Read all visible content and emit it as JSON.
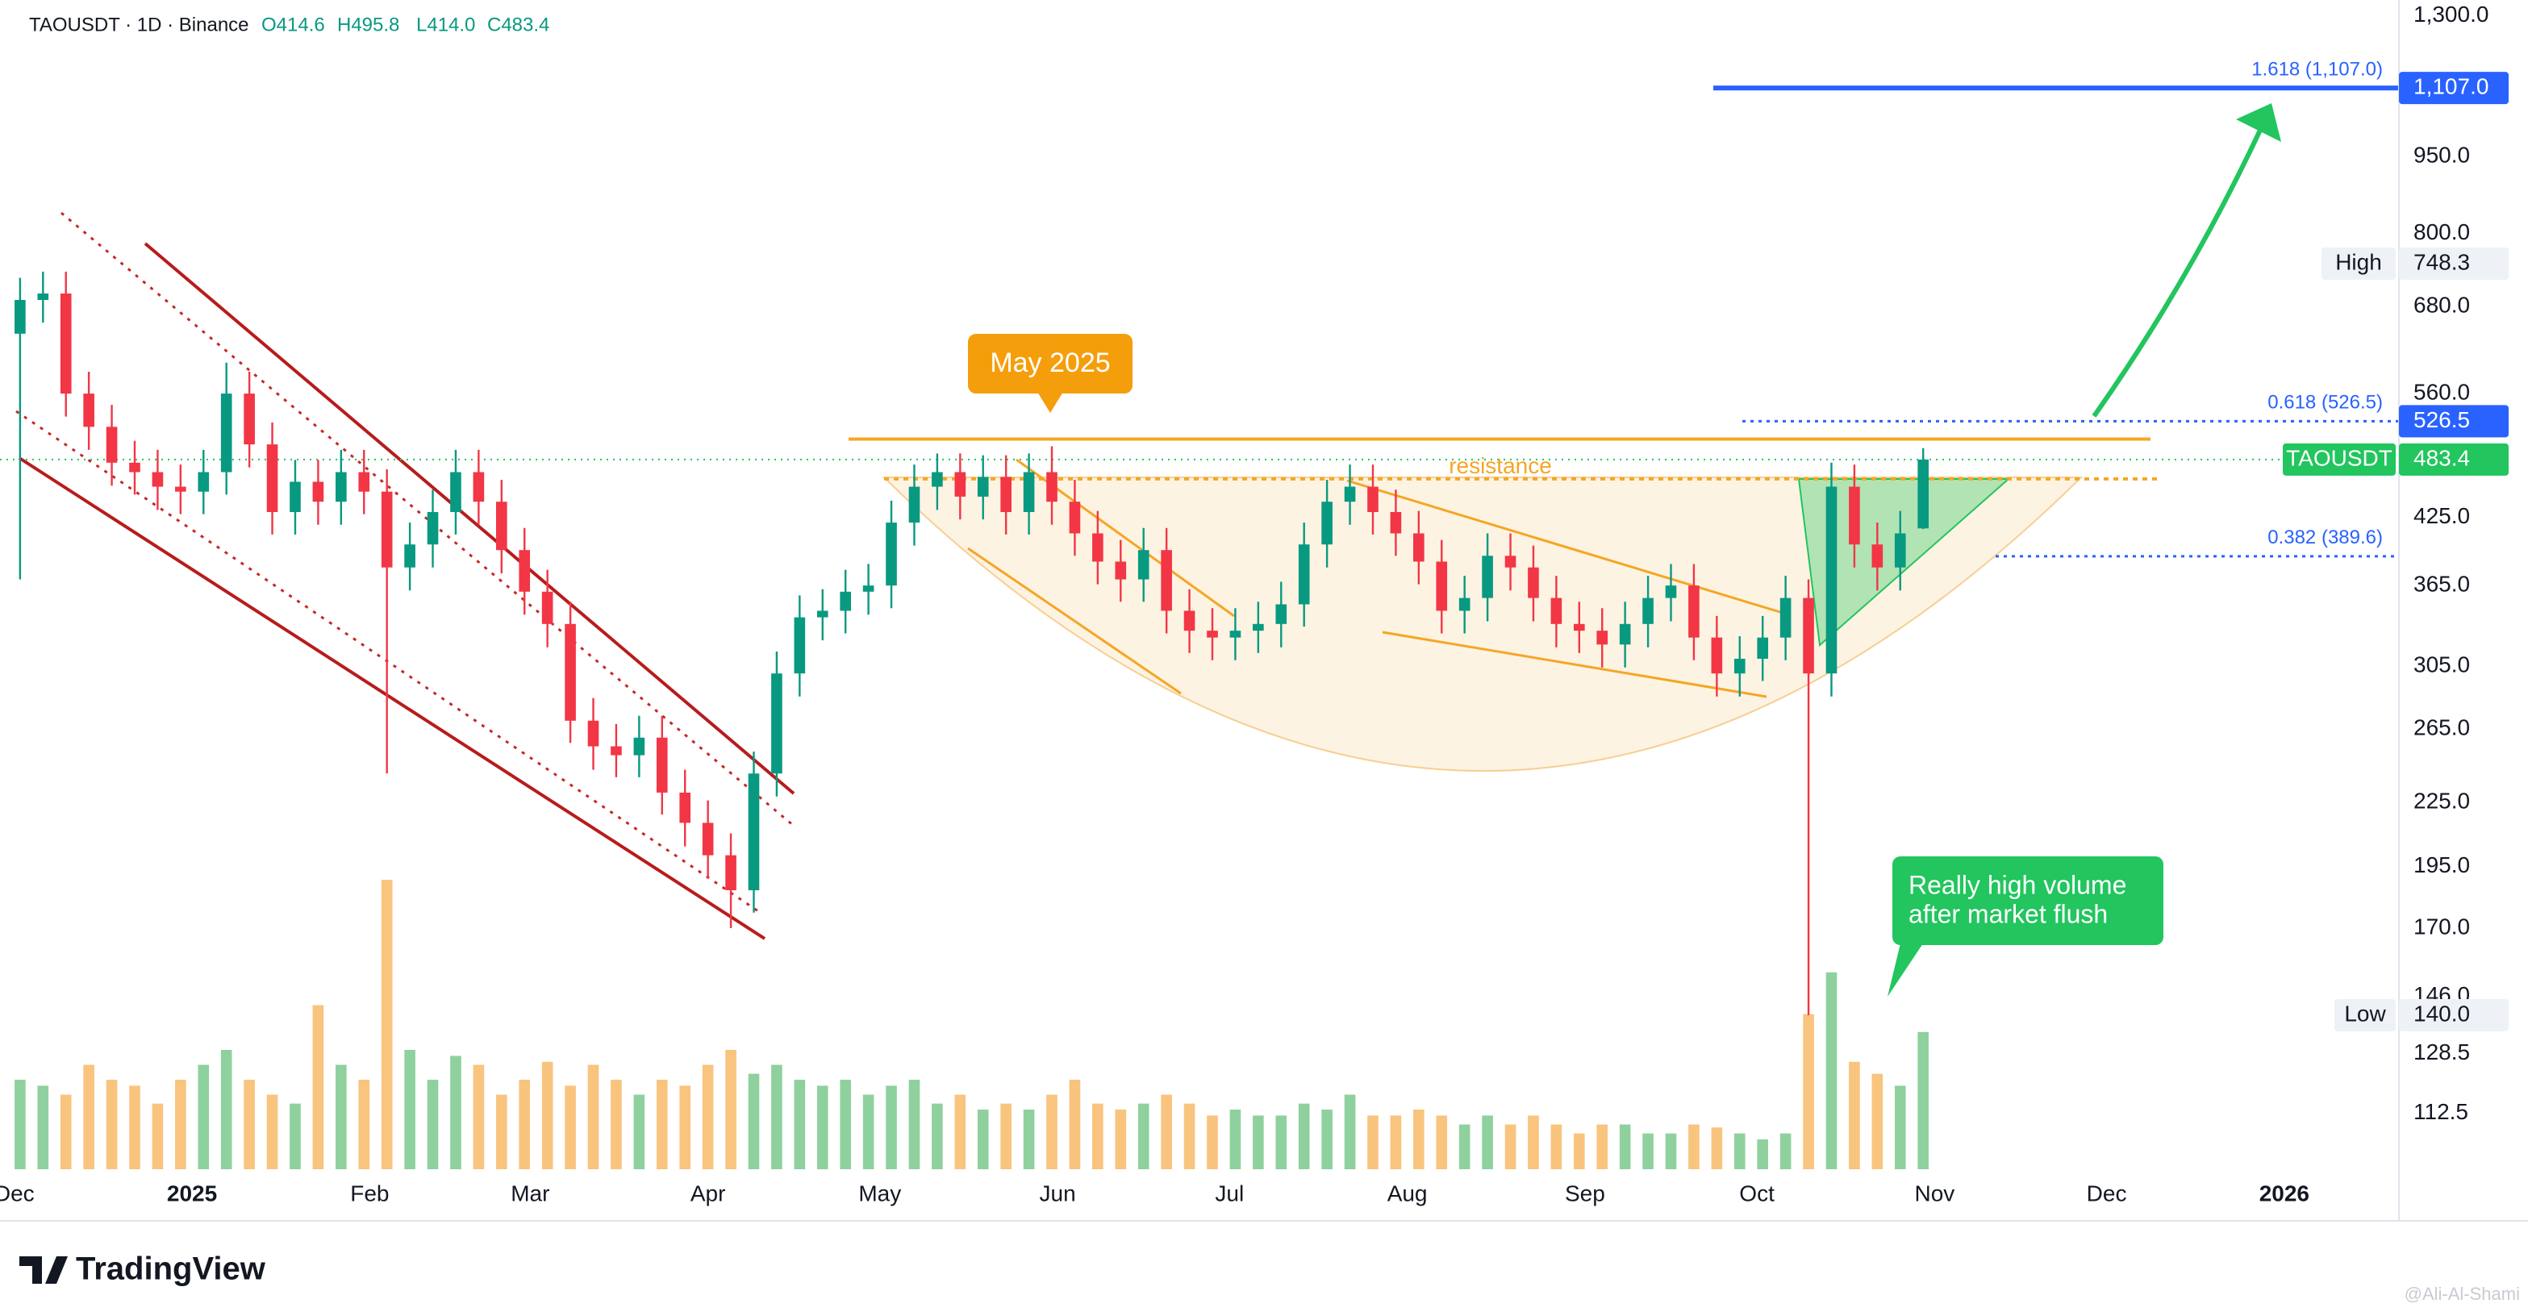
{
  "chart_data": {
    "type": "candlestick",
    "header": {
      "title": "TAOUSDT · 1D · Binance",
      "ohlc": [
        "O414.6",
        "H495.8",
        "L414.0",
        "C483.4"
      ]
    },
    "up_color": "#089981",
    "down_color": "#f23645",
    "volume_up_color": "#8fd19e",
    "volume_down_color": "#f9c47e",
    "log_scale": true,
    "grid": false,
    "xlim": [
      -2.5,
      416
    ],
    "xticks": [
      {
        "value": 0,
        "label": "Dec"
      },
      {
        "value": 31,
        "label": "2025"
      },
      {
        "value": 62,
        "label": "Feb"
      },
      {
        "value": 90,
        "label": "Mar"
      },
      {
        "value": 121,
        "label": "Apr"
      },
      {
        "value": 151,
        "label": "May"
      },
      {
        "value": 182,
        "label": "Jun"
      },
      {
        "value": 212,
        "label": "Jul"
      },
      {
        "value": 243,
        "label": "Aug"
      },
      {
        "value": 274,
        "label": "Sep"
      },
      {
        "value": 304,
        "label": "Oct"
      },
      {
        "value": 335,
        "label": "Nov"
      },
      {
        "value": 365,
        "label": "Dec"
      },
      {
        "value": 396,
        "label": "2026"
      }
    ],
    "ylim": [
      99.3,
      1347
    ],
    "yticks": [
      {
        "value": 1300,
        "label": "1,300.0"
      },
      {
        "value": 950,
        "label": "950.0"
      },
      {
        "value": 800,
        "label": "800.0"
      },
      {
        "value": 680,
        "label": "680.0"
      },
      {
        "value": 560,
        "label": "560.0"
      },
      {
        "value": 425,
        "label": "425.0"
      },
      {
        "value": 365,
        "label": "365.0"
      },
      {
        "value": 305,
        "label": "305.0"
      },
      {
        "value": 265,
        "label": "265.0"
      },
      {
        "value": 225,
        "label": "225.0"
      },
      {
        "value": 195,
        "label": "195.0"
      },
      {
        "value": 170,
        "label": "170.0"
      },
      {
        "value": 146,
        "label": "146.0"
      },
      {
        "value": 128.5,
        "label": "128.5"
      },
      {
        "value": 112.5,
        "label": "112.5"
      }
    ],
    "x": [
      1,
      5,
      9,
      13,
      17,
      21,
      25,
      29,
      33,
      37,
      41,
      45,
      49,
      53,
      57,
      61,
      65,
      69,
      73,
      77,
      81,
      85,
      89,
      93,
      97,
      101,
      105,
      109,
      113,
      117,
      121,
      125,
      129,
      133,
      137,
      141,
      145,
      149,
      153,
      157,
      161,
      165,
      169,
      173,
      177,
      181,
      185,
      189,
      193,
      197,
      201,
      205,
      209,
      213,
      217,
      221,
      225,
      229,
      233,
      237,
      241,
      245,
      249,
      253,
      257,
      261,
      265,
      269,
      273,
      277,
      281,
      285,
      289,
      293,
      297,
      301,
      305,
      309,
      313,
      317,
      321,
      325,
      329,
      333
    ],
    "open": [
      640,
      690,
      700,
      560,
      520,
      480,
      470,
      455,
      450,
      470,
      560,
      500,
      430,
      460,
      440,
      470,
      450,
      380,
      400,
      430,
      470,
      440,
      395,
      360,
      335,
      270,
      255,
      250,
      260,
      230,
      215,
      200,
      185,
      240,
      300,
      340,
      345,
      360,
      365,
      420,
      455,
      470,
      445,
      465,
      430,
      470,
      440,
      410,
      385,
      370,
      395,
      345,
      330,
      325,
      330,
      335,
      350,
      400,
      440,
      455,
      430,
      410,
      385,
      345,
      355,
      390,
      380,
      355,
      335,
      330,
      320,
      335,
      355,
      365,
      325,
      300,
      310,
      325,
      355,
      300,
      455,
      400,
      380,
      414.6
    ],
    "high": [
      725,
      735,
      735,
      588,
      546,
      504,
      494,
      478,
      494,
      600,
      588,
      525,
      483,
      483,
      494,
      494,
      473,
      420,
      452,
      494,
      494,
      462,
      415,
      378,
      352,
      284,
      268,
      273,
      273,
      242,
      226,
      210,
      252,
      315,
      357,
      362,
      378,
      383,
      441,
      478,
      490,
      490,
      488,
      488,
      490,
      498,
      462,
      431,
      404,
      415,
      415,
      362,
      347,
      347,
      352,
      368,
      420,
      462,
      478,
      478,
      452,
      431,
      404,
      373,
      410,
      410,
      399,
      373,
      352,
      347,
      352,
      373,
      383,
      383,
      341,
      326,
      341,
      373,
      370,
      480,
      478,
      420,
      431,
      495.8
    ],
    "low": [
      370,
      656,
      532,
      494,
      456,
      447,
      432,
      428,
      428,
      447,
      475,
      409,
      409,
      418,
      418,
      428,
      240,
      361,
      380,
      409,
      418,
      375,
      342,
      318,
      257,
      242,
      238,
      238,
      219,
      204,
      190,
      170,
      176,
      228,
      285,
      323,
      328,
      342,
      347,
      399,
      432,
      423,
      423,
      409,
      409,
      418,
      390,
      366,
      352,
      352,
      328,
      314,
      309,
      309,
      314,
      318,
      333,
      380,
      418,
      409,
      390,
      366,
      328,
      328,
      337,
      361,
      337,
      318,
      314,
      304,
      304,
      318,
      337,
      309,
      285,
      285,
      295,
      309,
      140,
      285,
      380,
      361,
      361,
      414
    ],
    "close": [
      690,
      700,
      560,
      520,
      480,
      470,
      455,
      450,
      470,
      560,
      500,
      430,
      460,
      440,
      470,
      450,
      380,
      400,
      430,
      470,
      440,
      395,
      360,
      335,
      270,
      255,
      250,
      260,
      230,
      215,
      200,
      185,
      240,
      300,
      340,
      345,
      360,
      365,
      420,
      455,
      470,
      445,
      465,
      430,
      470,
      440,
      410,
      385,
      370,
      395,
      345,
      330,
      325,
      330,
      335,
      350,
      400,
      440,
      455,
      430,
      410,
      385,
      345,
      355,
      390,
      380,
      355,
      335,
      330,
      320,
      335,
      355,
      365,
      325,
      300,
      310,
      325,
      355,
      300,
      455,
      400,
      380,
      410,
      483.4
    ],
    "volume": [
      30,
      28,
      25,
      35,
      30,
      28,
      22,
      30,
      35,
      40,
      30,
      25,
      22,
      55,
      35,
      30,
      97,
      40,
      30,
      38,
      35,
      25,
      30,
      36,
      28,
      35,
      30,
      25,
      30,
      28,
      35,
      40,
      32,
      35,
      30,
      28,
      30,
      25,
      28,
      30,
      22,
      25,
      20,
      22,
      20,
      25,
      30,
      22,
      20,
      22,
      25,
      22,
      18,
      20,
      18,
      18,
      22,
      20,
      25,
      18,
      18,
      20,
      18,
      15,
      18,
      15,
      18,
      15,
      12,
      15,
      15,
      12,
      12,
      15,
      14,
      12,
      10,
      12,
      52,
      66,
      36,
      32,
      28,
      46
    ],
    "volume_lim": [
      0,
      100
    ],
    "fib_levels": [
      {
        "value": 1107,
        "label": "1.618 (1,107.0)",
        "color": "#2962ff"
      },
      {
        "value": 526.5,
        "label": "0.618 (526.5)",
        "color": "#2962ff"
      },
      {
        "value": 389.6,
        "label": "0.382 (389.6)",
        "color": "#2962ff"
      }
    ],
    "resistance": {
      "value": 506,
      "label": "resistance",
      "color": "#f5a623"
    },
    "support_dotted": {
      "value": 463,
      "color": "#f5a623"
    },
    "price_labels": [
      {
        "value": 1107,
        "label": "1,107.0",
        "color": "#2962ff"
      },
      {
        "value": 526.5,
        "label": "526.5",
        "color": "#2962ff"
      },
      {
        "value": 483.4,
        "label": "483.4",
        "name": "TAOUSDT",
        "color": "#22c55e"
      },
      {
        "value": 748.3,
        "label": "748.3",
        "name": "High",
        "color": "#eef1f6"
      },
      {
        "value": 140,
        "label": "140.0",
        "name": "Low",
        "color": "#eef1f6"
      }
    ],
    "annotations": {
      "may": "May 2025",
      "volume_note": [
        "Really high volume",
        "after market flush"
      ]
    },
    "logo": "TradingView",
    "watermark": "@Ali-Al-Shami"
  }
}
